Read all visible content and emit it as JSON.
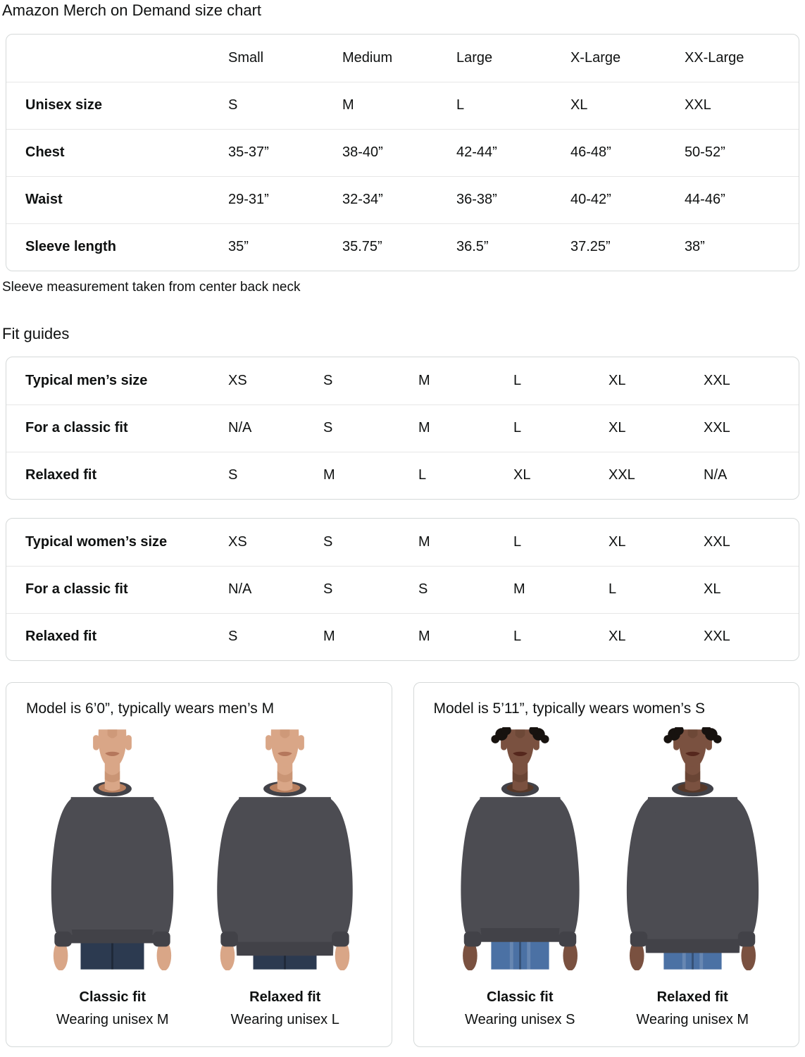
{
  "page": {
    "title": "Amazon Merch on Demand size chart",
    "sleeve_note": "Sleeve measurement taken from center back neck",
    "fit_guides_heading": "Fit guides"
  },
  "size_table": {
    "columns": [
      "Small",
      "Medium",
      "Large",
      "X-Large",
      "XX-Large"
    ],
    "rows": [
      {
        "label": "Unisex size",
        "values": [
          "S",
          "M",
          "L",
          "XL",
          "XXL"
        ]
      },
      {
        "label": "Chest",
        "values": [
          "35-37”",
          "38-40”",
          "42-44”",
          "46-48”",
          "50-52”"
        ]
      },
      {
        "label": "Waist",
        "values": [
          "29-31”",
          "32-34”",
          "36-38”",
          "40-42”",
          "44-46”"
        ]
      },
      {
        "label": "Sleeve length",
        "values": [
          "35”",
          "35.75”",
          "36.5”",
          "37.25”",
          "38”"
        ]
      }
    ]
  },
  "mens_fit_table": {
    "rows": [
      {
        "label": "Typical men’s size",
        "values": [
          "XS",
          "S",
          "M",
          "L",
          "XL",
          "XXL"
        ]
      },
      {
        "label": "For a classic fit",
        "values": [
          "N/A",
          "S",
          "M",
          "L",
          "XL",
          "XXL"
        ]
      },
      {
        "label": "Relaxed fit",
        "values": [
          "S",
          "M",
          "L",
          "XL",
          "XXL",
          "N/A"
        ]
      }
    ]
  },
  "womens_fit_table": {
    "rows": [
      {
        "label": "Typical women’s size",
        "values": [
          "XS",
          "S",
          "M",
          "L",
          "XL",
          "XXL"
        ]
      },
      {
        "label": "For a classic fit",
        "values": [
          "N/A",
          "S",
          "S",
          "M",
          "L",
          "XL"
        ]
      },
      {
        "label": "Relaxed fit",
        "values": [
          "S",
          "M",
          "M",
          "L",
          "XL",
          "XXL"
        ]
      }
    ]
  },
  "model_cards": [
    {
      "heading": "Model is 6’0”, typically wears men’s M",
      "figures": [
        {
          "fit_label": "Classic fit",
          "wearing": "Wearing unisex M"
        },
        {
          "fit_label": "Relaxed fit",
          "wearing": "Wearing unisex L"
        }
      ]
    },
    {
      "heading": "Model is 5’11”, typically wears women’s S",
      "figures": [
        {
          "fit_label": "Classic fit",
          "wearing": "Wearing unisex S"
        },
        {
          "fit_label": "Relaxed fit",
          "wearing": "Wearing unisex M"
        }
      ]
    }
  ],
  "colors": {
    "text": "#0F1111",
    "panel_border": "#D5D9D9",
    "row_divider": "#E7E7E7",
    "sweatshirt": "#4C4C52",
    "sweatshirt_trim": "#424248",
    "jeans_mens": "#2C3A50",
    "jeans_womens": "#4B71A4",
    "skin_man": "#D9A687",
    "skin_woman": "#7A5140"
  }
}
